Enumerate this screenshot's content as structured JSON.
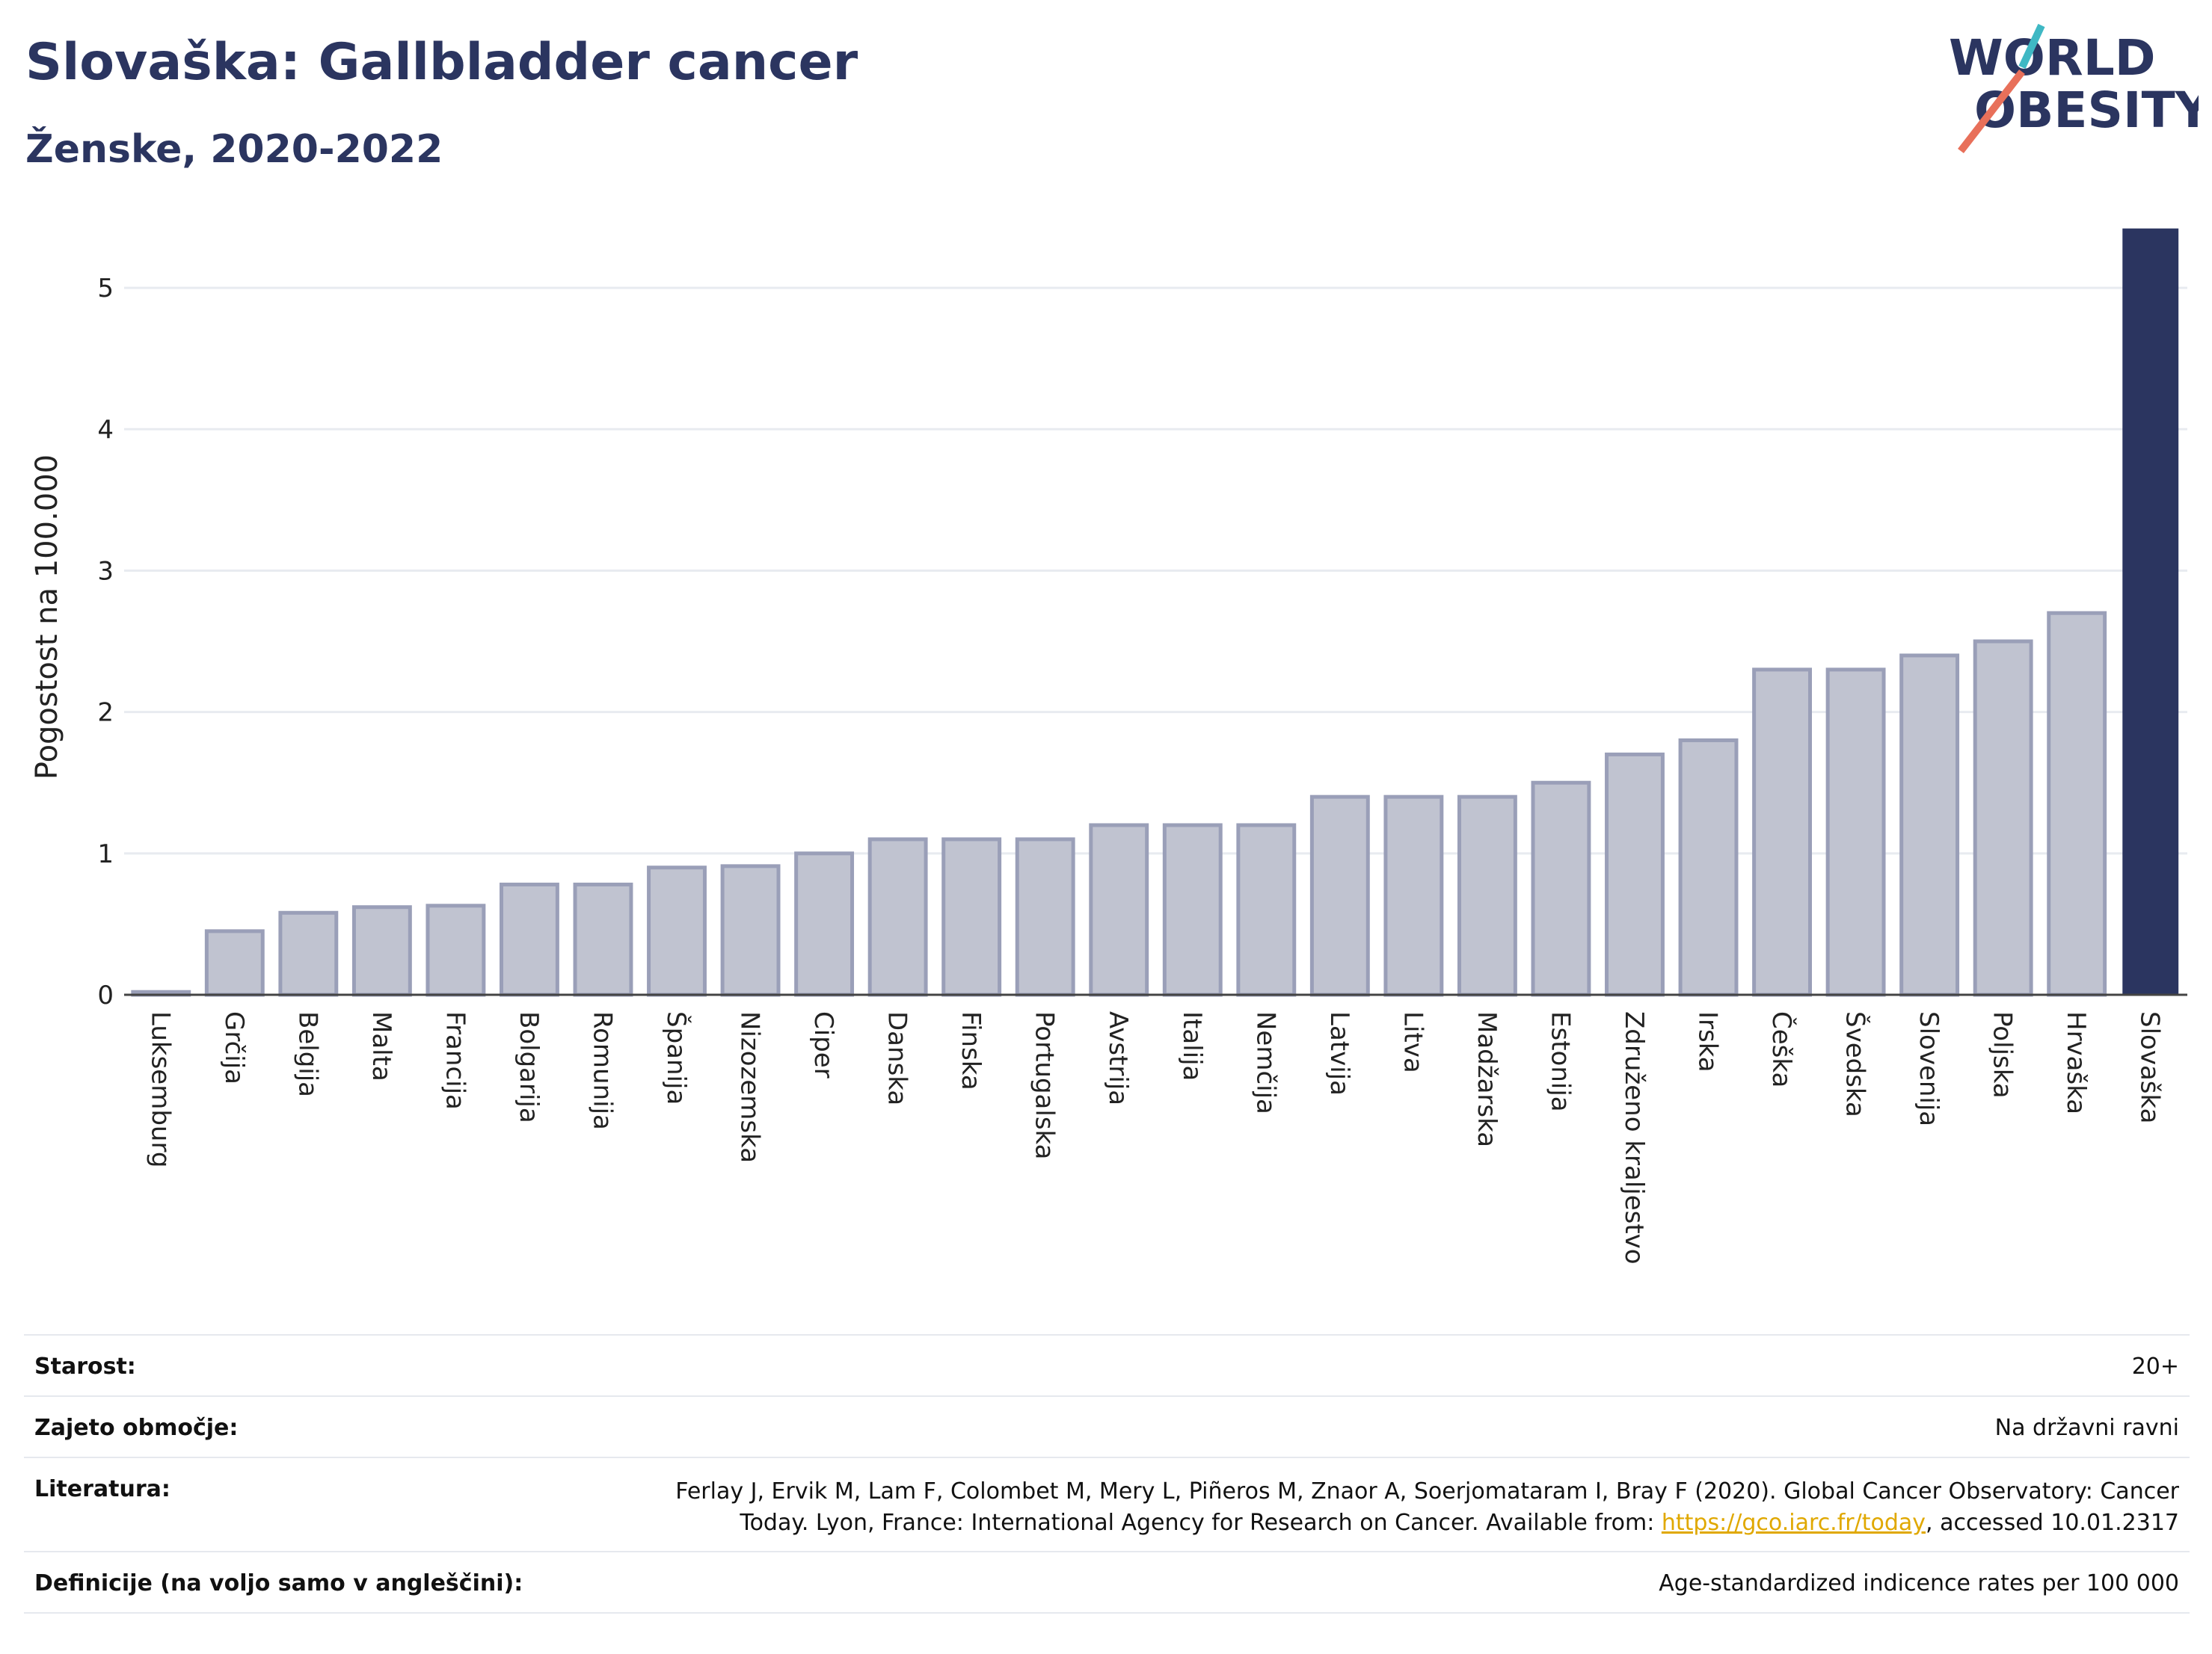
{
  "header": {
    "title": "Slovaška: Gallbladder cancer",
    "subtitle": "Ženske, 2020-2022"
  },
  "logo": {
    "line1": "WORLD",
    "line2": "OBESITY",
    "accent_teal": "#3fb8c4",
    "accent_coral": "#e8705a"
  },
  "colors": {
    "bar": "#c0c3d0",
    "bar_stroke": "#9a9fb8",
    "highlight": "#2b3560"
  },
  "chart_data": {
    "type": "bar",
    "title": "Slovaška: Gallbladder cancer",
    "subtitle": "Ženske, 2020-2022",
    "ylabel": "Pogostost na 100.000",
    "xlabel": "",
    "ylim": [
      0,
      5.45
    ],
    "yticks": [
      0,
      1,
      2,
      3,
      4,
      5
    ],
    "grid": true,
    "highlight": "Slovaška",
    "categories": [
      "Luksemburg",
      "Grčija",
      "Belgija",
      "Malta",
      "Francija",
      "Bolgarija",
      "Romunija",
      "Španija",
      "Nizozemska",
      "Ciper",
      "Danska",
      "Finska",
      "Portugalska",
      "Avstrija",
      "Italija",
      "Nemčija",
      "Latvija",
      "Litva",
      "Madžarska",
      "Estonija",
      "Združeno kraljestvo",
      "Irska",
      "Češka",
      "Švedska",
      "Slovenija",
      "Poljska",
      "Hrvaška",
      "Slovaška"
    ],
    "values": [
      0.02,
      0.45,
      0.58,
      0.62,
      0.63,
      0.78,
      0.78,
      0.9,
      0.91,
      1.0,
      1.1,
      1.1,
      1.1,
      1.2,
      1.2,
      1.2,
      1.4,
      1.4,
      1.4,
      1.5,
      1.7,
      1.8,
      2.3,
      2.3,
      2.4,
      2.5,
      2.7,
      5.42
    ]
  },
  "meta": {
    "rows": [
      {
        "label": "Starost:",
        "value": "20+"
      },
      {
        "label": "Zajeto območje:",
        "value": "Na državni ravni"
      },
      {
        "label": "Literatura:",
        "value_line1": "Ferlay J, Ervik M, Lam F, Colombet M, Mery L, Piñeros M, Znaor A, Soerjomataram I, Bray F (2020). Global Cancer Observatory: Cancer",
        "value_line2_pre": "Today. Lyon, France: International Agency for Research on Cancer. Available from: ",
        "link": "https://gco.iarc.fr/today",
        "value_line2_post": ", accessed 10.01.2317"
      },
      {
        "label": "Definicije (na voljo samo v angleščini):",
        "value": "Age-standardized indicence rates per 100 000"
      }
    ]
  }
}
